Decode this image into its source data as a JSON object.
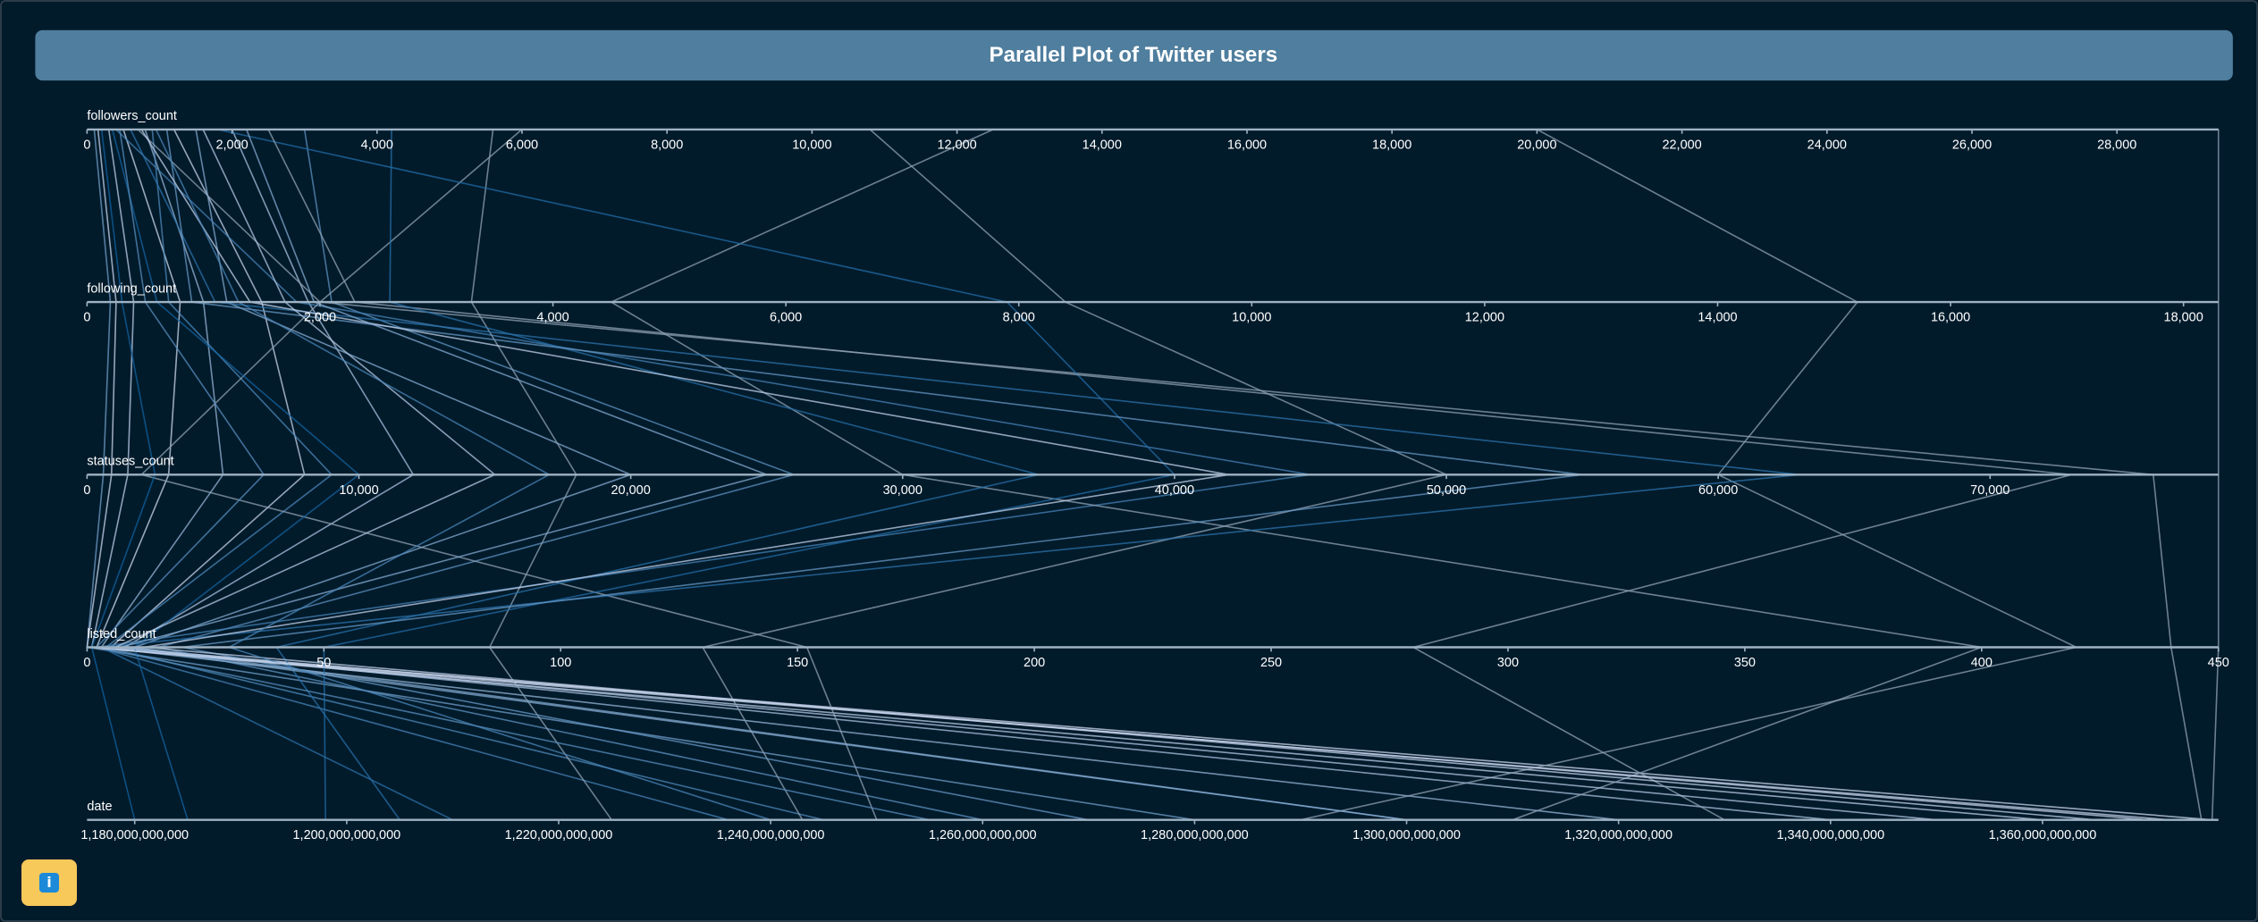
{
  "chart_data": {
    "type": "parallel",
    "title": "Parallel Plot of Twitter users",
    "colorscale": [
      "#0b5e9e",
      "#cdd7ee"
    ],
    "outlier_color": "#8fa1b4",
    "dimensions": [
      {
        "name": "followers_count",
        "xlim": [
          0,
          29400
        ],
        "xticks": [
          0,
          {
            "value": 2000,
            "label": "2,000"
          },
          {
            "value": 4000,
            "label": "4,000"
          },
          {
            "value": 6000,
            "label": "6,000"
          },
          {
            "value": 8000,
            "label": "8,000"
          },
          {
            "value": 10000,
            "label": "10,000"
          },
          {
            "value": 12000,
            "label": "12,000"
          },
          {
            "value": 14000,
            "label": "14,000"
          },
          {
            "value": 16000,
            "label": "16,000"
          },
          {
            "value": 18000,
            "label": "18,000"
          },
          {
            "value": 20000,
            "label": "20,000"
          },
          {
            "value": 22000,
            "label": "22,000"
          },
          {
            "value": 24000,
            "label": "24,000"
          },
          {
            "value": 26000,
            "label": "26,000"
          },
          {
            "value": 28000,
            "label": "28,000"
          }
        ]
      },
      {
        "name": "following_count",
        "xlim": [
          0,
          18300
        ],
        "xticks": [
          0,
          {
            "value": 2000,
            "label": "2,000"
          },
          {
            "value": 4000,
            "label": "4,000"
          },
          {
            "value": 6000,
            "label": "6,000"
          },
          {
            "value": 8000,
            "label": "8,000"
          },
          {
            "value": 10000,
            "label": "10,000"
          },
          {
            "value": 12000,
            "label": "12,000"
          },
          {
            "value": 14000,
            "label": "14,000"
          },
          {
            "value": 16000,
            "label": "16,000"
          },
          {
            "value": 18000,
            "label": "18,000"
          }
        ]
      },
      {
        "name": "statuses_count",
        "xlim": [
          0,
          78400
        ],
        "xticks": [
          0,
          {
            "value": 10000,
            "label": "10,000"
          },
          {
            "value": 20000,
            "label": "20,000"
          },
          {
            "value": 30000,
            "label": "30,000"
          },
          {
            "value": 40000,
            "label": "40,000"
          },
          {
            "value": 50000,
            "label": "50,000"
          },
          {
            "value": 60000,
            "label": "60,000"
          },
          {
            "value": 70000,
            "label": "70,000"
          }
        ]
      },
      {
        "name": "listed_count",
        "xlim": [
          0,
          450
        ],
        "xticks": [
          0,
          50,
          100,
          150,
          200,
          250,
          300,
          350,
          400,
          450
        ]
      },
      {
        "name": "date",
        "xlim": [
          1175500000000,
          1376600000000
        ],
        "xticks": [
          {
            "value": 1180000000000,
            "label": "1,180,000,000,000"
          },
          {
            "value": 1200000000000,
            "label": "1,200,000,000,000"
          },
          {
            "value": 1220000000000,
            "label": "1,220,000,000,000"
          },
          {
            "value": 1240000000000,
            "label": "1,240,000,000,000"
          },
          {
            "value": 1260000000000,
            "label": "1,260,000,000,000"
          },
          {
            "value": 1280000000000,
            "label": "1,280,000,000,000"
          },
          {
            "value": 1300000000000,
            "label": "1,300,000,000,000"
          },
          {
            "value": 1320000000000,
            "label": "1,320,000,000,000"
          },
          {
            "value": 1340000000000,
            "label": "1,340,000,000,000"
          },
          {
            "value": 1360000000000,
            "label": "1,360,000,000,000"
          }
        ]
      }
    ],
    "records": [
      [
        500,
        800,
        3000,
        2,
        1376000000000
      ],
      [
        1200,
        1500,
        8000,
        5,
        1370000000000
      ],
      [
        300,
        400,
        1500,
        1,
        1360000000000
      ],
      [
        2000,
        1900,
        12000,
        8,
        1340000000000
      ],
      [
        800,
        1000,
        5000,
        3,
        1320000000000
      ],
      [
        1500,
        1200,
        20000,
        10,
        1300000000000
      ],
      [
        100,
        200,
        600,
        0,
        1280000000000
      ],
      [
        3000,
        2100,
        26000,
        15,
        1260000000000
      ],
      [
        900,
        700,
        9000,
        4,
        1245000000000
      ],
      [
        400,
        1800,
        45000,
        2,
        1236000000000
      ],
      [
        5600,
        3300,
        18000,
        85,
        1225000000000
      ],
      [
        10800,
        8400,
        50000,
        130,
        1243000000000
      ],
      [
        6000,
        2000,
        2000,
        152,
        1250000000000
      ],
      [
        12500,
        4500,
        30000,
        400,
        1310000000000
      ],
      [
        29400,
        18300,
        78400,
        450,
        1376000000000
      ],
      [
        20000,
        15200,
        60000,
        420,
        1290000000000
      ],
      [
        700,
        2000,
        76000,
        440,
        1375000000000
      ],
      [
        1800,
        7900,
        40000,
        50,
        1198000000000
      ],
      [
        2500,
        2300,
        73000,
        280,
        1330000000000
      ],
      [
        600,
        1100,
        63000,
        3,
        1210000000000
      ],
      [
        4200,
        2600,
        35000,
        40,
        1205000000000
      ],
      [
        350,
        600,
        10000,
        10,
        1185000000000
      ],
      [
        1100,
        900,
        55000,
        20,
        1270000000000
      ],
      [
        200,
        300,
        2500,
        1,
        1180000000000
      ],
      [
        1600,
        1700,
        15000,
        6,
        1350000000000
      ],
      [
        750,
        1400,
        42000,
        12,
        1365000000000
      ],
      [
        2200,
        1950,
        25000,
        7,
        1300000000000
      ],
      [
        450,
        500,
        6500,
        2,
        1255000000000
      ],
      [
        950,
        1300,
        17000,
        30,
        1240000000000
      ],
      [
        150,
        250,
        900,
        0,
        1372000000000
      ]
    ]
  }
}
